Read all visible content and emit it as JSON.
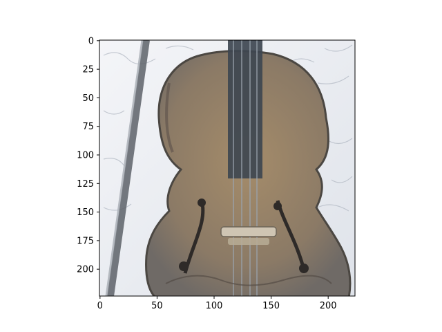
{
  "chart_data": {
    "type": "image",
    "description_visible": "image displayed on pixel-index axes (imshow)",
    "x_axis": {
      "range": [
        -0.5,
        223.5
      ],
      "ticks": [
        0,
        50,
        100,
        150,
        200
      ],
      "tick_labels": [
        "0",
        "50",
        "100",
        "150",
        "200"
      ]
    },
    "y_axis": {
      "range": [
        223.5,
        -0.5
      ],
      "inverted": true,
      "ticks": [
        0,
        25,
        50,
        75,
        100,
        125,
        150,
        175,
        200
      ],
      "tick_labels": [
        "0",
        "25",
        "50",
        "75",
        "100",
        "125",
        "150",
        "175",
        "200"
      ]
    },
    "grid": false,
    "legend": "none",
    "title": "",
    "xlabel": "",
    "ylabel": "",
    "image_content": {
      "body_colors": [
        "#8b7a66",
        "#a58c6a",
        "#6f6a66"
      ],
      "background_colors": [
        "#f4f5f8",
        "#dfe3ea"
      ],
      "dark_color": "#3a3f46"
    }
  }
}
